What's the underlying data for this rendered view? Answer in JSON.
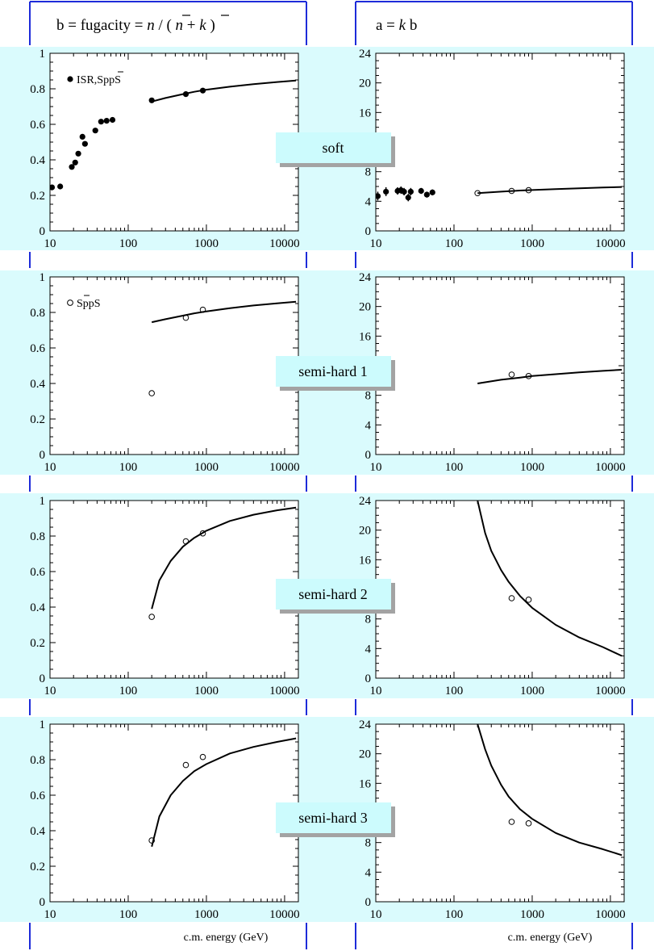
{
  "colors": {
    "band": "#dafbfd",
    "label_box": "#ccfbfd",
    "label_shadow": "#a3a3a3",
    "frame_blue": "#1d2bd9",
    "ink": "#000000"
  },
  "column_titles": {
    "left": {
      "prefix": "b = fugacity = ",
      "nbar": "n",
      "mid": " / ( ",
      "nbar2": "n",
      "plus": " + ",
      "k": "k",
      "close": " )"
    },
    "right": {
      "prefix": "a = ",
      "k": "k",
      "suffix": " b"
    }
  },
  "row_labels": [
    "soft",
    "semi-hard 1",
    "semi-hard 2",
    "semi-hard 3"
  ],
  "xlabel": "c.m. energy (GeV)",
  "legends": {
    "soft": {
      "marker": "filled",
      "text_a": "ISR,S",
      "text_bar": "p",
      "text_b": "pS"
    },
    "semi1": {
      "marker": "open",
      "text_a": "S",
      "text_bar": "p",
      "text_b": "pS"
    }
  },
  "chart_data": [
    {
      "id": "soft-b",
      "type": "scatter",
      "row": "soft",
      "title": "b = fugacity = n / ( n + k )",
      "xlabel": "",
      "ylabel": "",
      "xscale": "log",
      "xlim": [
        10,
        15000
      ],
      "ylim": [
        0,
        1
      ],
      "xticks": [
        10,
        100,
        1000,
        10000
      ],
      "xtick_labels": [
        "10",
        "100",
        "1000",
        "10000"
      ],
      "yticks": [
        0,
        0.2,
        0.4,
        0.6,
        0.8,
        1
      ],
      "ytick_labels": [
        "0",
        "0.2",
        "0.4",
        "0.6",
        "0.8",
        "1"
      ],
      "yminor_step": 0.05,
      "series": [
        {
          "name": "ISR,SppS",
          "marker": "filled",
          "points": [
            [
              10.6,
              0.245
            ],
            [
              13.5,
              0.25
            ],
            [
              19,
              0.36
            ],
            [
              21,
              0.385
            ],
            [
              23,
              0.435
            ],
            [
              26,
              0.53
            ],
            [
              28,
              0.49
            ],
            [
              38,
              0.565
            ],
            [
              45,
              0.615
            ],
            [
              53,
              0.62
            ],
            [
              63,
              0.625
            ],
            [
              200,
              0.735
            ],
            [
              546,
              0.77
            ],
            [
              900,
              0.79
            ]
          ]
        },
        {
          "marker": "line",
          "points": [
            [
              200,
              0.728
            ],
            [
              300,
              0.748
            ],
            [
              500,
              0.77
            ],
            [
              700,
              0.783
            ],
            [
              1000,
              0.795
            ],
            [
              2000,
              0.812
            ],
            [
              4000,
              0.826
            ],
            [
              8000,
              0.838
            ],
            [
              14000,
              0.847
            ]
          ]
        }
      ]
    },
    {
      "id": "soft-a",
      "type": "scatter",
      "row": "soft",
      "title": "a = k b",
      "xlabel": "",
      "ylabel": "",
      "xscale": "log",
      "xlim": [
        10,
        15000
      ],
      "ylim": [
        0,
        24
      ],
      "xticks": [
        10,
        100,
        1000,
        10000
      ],
      "xtick_labels": [
        "10",
        "100",
        "1000",
        "10000"
      ],
      "yticks": [
        0,
        4,
        8,
        12,
        16,
        20,
        24
      ],
      "ytick_labels": [
        "0",
        "4",
        "8",
        "12",
        "16",
        "20",
        "24"
      ],
      "yminor_step": 1,
      "series": [
        {
          "marker": "filled",
          "points": [
            [
              10.6,
              4.7
            ],
            [
              13.5,
              5.3
            ],
            [
              19,
              5.4
            ],
            [
              21,
              5.5
            ],
            [
              23,
              5.3
            ],
            [
              26,
              4.5
            ],
            [
              28,
              5.3
            ],
            [
              38,
              5.4
            ],
            [
              45,
              4.9
            ],
            [
              53,
              5.2
            ]
          ],
          "errors": [
            0.6,
            0.6,
            0.5,
            0.5,
            0.5,
            0.5,
            0.5,
            0.4,
            0.4,
            0.4
          ]
        },
        {
          "marker": "open",
          "points": [
            [
              200,
              5.1
            ],
            [
              546,
              5.4
            ],
            [
              900,
              5.5
            ]
          ]
        },
        {
          "marker": "line",
          "points": [
            [
              200,
              5.1
            ],
            [
              400,
              5.3
            ],
            [
              700,
              5.45
            ],
            [
              1000,
              5.52
            ],
            [
              2000,
              5.65
            ],
            [
              4000,
              5.76
            ],
            [
              8000,
              5.86
            ],
            [
              14000,
              5.93
            ]
          ]
        }
      ]
    },
    {
      "id": "semi1-b",
      "type": "scatter",
      "row": "semi-hard 1",
      "xscale": "log",
      "xlim": [
        10,
        15000
      ],
      "ylim": [
        0,
        1
      ],
      "xticks": [
        10,
        100,
        1000,
        10000
      ],
      "xtick_labels": [
        "10",
        "100",
        "1000",
        "10000"
      ],
      "yticks": [
        0,
        0.2,
        0.4,
        0.6,
        0.8,
        1
      ],
      "ytick_labels": [
        "0",
        "0.2",
        "0.4",
        "0.6",
        "0.8",
        "1"
      ],
      "yminor_step": 0.05,
      "series": [
        {
          "name": "SppS",
          "marker": "open",
          "points": [
            [
              200,
              0.345
            ],
            [
              546,
              0.77
            ],
            [
              900,
              0.815
            ]
          ]
        },
        {
          "marker": "line",
          "points": [
            [
              200,
              0.745
            ],
            [
              300,
              0.762
            ],
            [
              500,
              0.782
            ],
            [
              700,
              0.795
            ],
            [
              1000,
              0.806
            ],
            [
              2000,
              0.824
            ],
            [
              4000,
              0.839
            ],
            [
              8000,
              0.851
            ],
            [
              14000,
              0.86
            ]
          ]
        }
      ]
    },
    {
      "id": "semi1-a",
      "type": "scatter",
      "row": "semi-hard 1",
      "xscale": "log",
      "xlim": [
        10,
        15000
      ],
      "ylim": [
        0,
        24
      ],
      "xticks": [
        10,
        100,
        1000,
        10000
      ],
      "xtick_labels": [
        "10",
        "100",
        "1000",
        "10000"
      ],
      "yticks": [
        0,
        4,
        8,
        12,
        16,
        20,
        24
      ],
      "ytick_labels": [
        "0",
        "4",
        "8",
        "12",
        "16",
        "20",
        "24"
      ],
      "yminor_step": 1,
      "series": [
        {
          "marker": "open",
          "points": [
            [
              546,
              10.8
            ],
            [
              900,
              10.6
            ]
          ]
        },
        {
          "marker": "line",
          "points": [
            [
              200,
              9.6
            ],
            [
              400,
              10.1
            ],
            [
              700,
              10.4
            ],
            [
              1000,
              10.6
            ],
            [
              2000,
              10.85
            ],
            [
              4000,
              11.1
            ],
            [
              8000,
              11.3
            ],
            [
              14000,
              11.45
            ]
          ]
        }
      ]
    },
    {
      "id": "semi2-b",
      "type": "scatter",
      "row": "semi-hard 2",
      "xscale": "log",
      "xlim": [
        10,
        15000
      ],
      "ylim": [
        0,
        1
      ],
      "xticks": [
        10,
        100,
        1000,
        10000
      ],
      "xtick_labels": [
        "10",
        "100",
        "1000",
        "10000"
      ],
      "yticks": [
        0,
        0.2,
        0.4,
        0.6,
        0.8,
        1
      ],
      "ytick_labels": [
        "0",
        "0.2",
        "0.4",
        "0.6",
        "0.8",
        "1"
      ],
      "yminor_step": 0.05,
      "series": [
        {
          "marker": "open",
          "points": [
            [
              200,
              0.345
            ],
            [
              546,
              0.77
            ],
            [
              900,
              0.815
            ]
          ]
        },
        {
          "marker": "line",
          "points": [
            [
              200,
              0.39
            ],
            [
              250,
              0.55
            ],
            [
              350,
              0.66
            ],
            [
              500,
              0.74
            ],
            [
              700,
              0.79
            ],
            [
              1000,
              0.83
            ],
            [
              2000,
              0.885
            ],
            [
              4000,
              0.92
            ],
            [
              8000,
              0.945
            ],
            [
              14000,
              0.96
            ]
          ]
        }
      ]
    },
    {
      "id": "semi2-a",
      "type": "scatter",
      "row": "semi-hard 2",
      "xscale": "log",
      "xlim": [
        10,
        15000
      ],
      "ylim": [
        0,
        24
      ],
      "xticks": [
        10,
        100,
        1000,
        10000
      ],
      "xtick_labels": [
        "10",
        "100",
        "1000",
        "10000"
      ],
      "yticks": [
        0,
        4,
        8,
        12,
        16,
        20,
        24
      ],
      "ytick_labels": [
        "0",
        "4",
        "8",
        "12",
        "16",
        "20",
        "24"
      ],
      "yminor_step": 1,
      "series": [
        {
          "marker": "open",
          "points": [
            [
              546,
              10.8
            ],
            [
              900,
              10.6
            ]
          ]
        },
        {
          "marker": "line",
          "points": [
            [
              200,
              24
            ],
            [
              250,
              19.6
            ],
            [
              300,
              17.2
            ],
            [
              400,
              14.6
            ],
            [
              500,
              13.0
            ],
            [
              700,
              11.1
            ],
            [
              1000,
              9.5
            ],
            [
              2000,
              7.2
            ],
            [
              4000,
              5.5
            ],
            [
              8000,
              4.2
            ],
            [
              14000,
              3.0
            ]
          ]
        }
      ]
    },
    {
      "id": "semi3-b",
      "type": "scatter",
      "row": "semi-hard 3",
      "xlabel": "c.m. energy (GeV)",
      "xscale": "log",
      "xlim": [
        10,
        15000
      ],
      "ylim": [
        0,
        1
      ],
      "xticks": [
        10,
        100,
        1000,
        10000
      ],
      "xtick_labels": [
        "10",
        "100",
        "1000",
        "10000"
      ],
      "yticks": [
        0,
        0.2,
        0.4,
        0.6,
        0.8,
        1
      ],
      "ytick_labels": [
        "0",
        "0.2",
        "0.4",
        "0.6",
        "0.8",
        "1"
      ],
      "yminor_step": 0.05,
      "series": [
        {
          "marker": "open",
          "points": [
            [
              200,
              0.345
            ],
            [
              546,
              0.77
            ],
            [
              900,
              0.815
            ]
          ]
        },
        {
          "marker": "line",
          "points": [
            [
              200,
              0.31
            ],
            [
              250,
              0.48
            ],
            [
              350,
              0.6
            ],
            [
              500,
              0.68
            ],
            [
              700,
              0.735
            ],
            [
              1000,
              0.775
            ],
            [
              2000,
              0.835
            ],
            [
              4000,
              0.872
            ],
            [
              8000,
              0.9
            ],
            [
              14000,
              0.92
            ]
          ]
        }
      ]
    },
    {
      "id": "semi3-a",
      "type": "scatter",
      "row": "semi-hard 3",
      "xlabel": "c.m. energy (GeV)",
      "xscale": "log",
      "xlim": [
        10,
        15000
      ],
      "ylim": [
        0,
        24
      ],
      "xticks": [
        10,
        100,
        1000,
        10000
      ],
      "xtick_labels": [
        "10",
        "100",
        "1000",
        "10000"
      ],
      "yticks": [
        0,
        4,
        8,
        12,
        16,
        20,
        24
      ],
      "ytick_labels": [
        "0",
        "4",
        "8",
        "12",
        "16",
        "20",
        "24"
      ],
      "yminor_step": 1,
      "series": [
        {
          "marker": "open",
          "points": [
            [
              546,
              10.8
            ],
            [
              900,
              10.6
            ]
          ]
        },
        {
          "marker": "line",
          "points": [
            [
              200,
              24
            ],
            [
              250,
              20.6
            ],
            [
              300,
              18.4
            ],
            [
              400,
              15.8
            ],
            [
              500,
              14.2
            ],
            [
              700,
              12.5
            ],
            [
              1000,
              11.2
            ],
            [
              2000,
              9.3
            ],
            [
              4000,
              8.0
            ],
            [
              8000,
              7.1
            ],
            [
              14000,
              6.3
            ]
          ]
        }
      ]
    }
  ]
}
